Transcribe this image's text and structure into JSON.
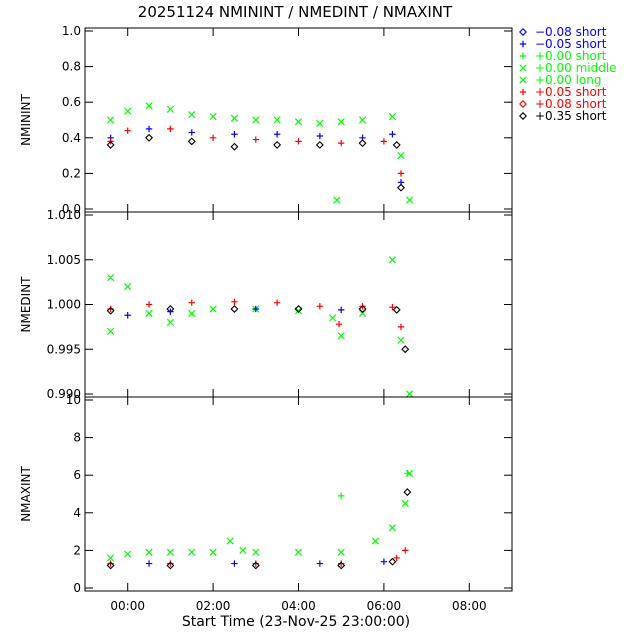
{
  "chart_data": {
    "type": "scatter",
    "title": "20251124 NMININT / NMEDINT / NMAXINT",
    "xlabel": "Start Time (23-Nov-25 23:00:00)",
    "x_unit": "hours since 23-Nov-25 23:00:00",
    "x_range": [
      0,
      10
    ],
    "x_ticks": [
      1,
      3,
      5,
      7,
      9
    ],
    "x_tick_labels": [
      "00:00",
      "02:00",
      "04:00",
      "06:00",
      "08:00"
    ],
    "grid": false,
    "legend_position": "right",
    "legend": [
      {
        "label": "−0.08 short",
        "symbol": "diamond",
        "color": "#0000ff"
      },
      {
        "label": "−0.05 short",
        "symbol": "plus",
        "color": "#0000ff"
      },
      {
        "label": "+0.00 short",
        "symbol": "plus",
        "color": "#00ff00"
      },
      {
        "label": "+0.00 middle",
        "symbol": "cross",
        "color": "#00ff00"
      },
      {
        "label": "+0.00 long",
        "symbol": "cross",
        "color": "#00ff00"
      },
      {
        "label": "+0.05 short",
        "symbol": "plus",
        "color": "#ff0000"
      },
      {
        "label": "+0.08 short",
        "symbol": "diamond",
        "color": "#ff0000"
      },
      {
        "label": "+0.35 short",
        "symbol": "diamond",
        "color": "#000000"
      }
    ],
    "panels": [
      {
        "ylabel": "NMININT",
        "ylim": [
          0,
          1
        ],
        "yticks": [
          0,
          0.2,
          0.4,
          0.6,
          0.8,
          1.0
        ],
        "ytick_labels": [
          "0.0",
          "0.2",
          "0.4",
          "0.6",
          "0.8",
          "1.0"
        ],
        "series": [
          {
            "symbol": "cross",
            "color": "#00ff00",
            "points": [
              [
                0.6,
                0.5
              ],
              [
                1.0,
                0.55
              ],
              [
                1.5,
                0.58
              ],
              [
                2.0,
                0.56
              ],
              [
                2.5,
                0.53
              ],
              [
                3.0,
                0.52
              ],
              [
                3.5,
                0.51
              ],
              [
                4.0,
                0.5
              ],
              [
                4.5,
                0.5
              ],
              [
                5.0,
                0.49
              ],
              [
                5.5,
                0.48
              ],
              [
                6.0,
                0.49
              ],
              [
                6.5,
                0.5
              ],
              [
                7.2,
                0.52
              ],
              [
                7.4,
                0.3
              ],
              [
                7.6,
                0.05
              ],
              [
                5.9,
                0.05
              ]
            ]
          },
          {
            "symbol": "plus",
            "color": "#0000ff",
            "points": [
              [
                0.6,
                0.4
              ],
              [
                1.5,
                0.45
              ],
              [
                2.5,
                0.43
              ],
              [
                3.5,
                0.42
              ],
              [
                4.5,
                0.42
              ],
              [
                5.5,
                0.41
              ],
              [
                6.5,
                0.4
              ],
              [
                7.2,
                0.42
              ],
              [
                7.4,
                0.15
              ]
            ]
          },
          {
            "symbol": "plus",
            "color": "#ff0000",
            "points": [
              [
                0.6,
                0.38
              ],
              [
                1.0,
                0.44
              ],
              [
                2.0,
                0.45
              ],
              [
                3.0,
                0.4
              ],
              [
                4.0,
                0.39
              ],
              [
                5.0,
                0.38
              ],
              [
                6.0,
                0.37
              ],
              [
                7.0,
                0.38
              ],
              [
                7.4,
                0.2
              ]
            ]
          },
          {
            "symbol": "diamond",
            "color": "#000000",
            "points": [
              [
                0.6,
                0.36
              ],
              [
                1.5,
                0.4
              ],
              [
                2.5,
                0.38
              ],
              [
                3.5,
                0.35
              ],
              [
                4.5,
                0.36
              ],
              [
                5.5,
                0.36
              ],
              [
                6.5,
                0.37
              ],
              [
                7.3,
                0.36
              ],
              [
                7.4,
                0.12
              ]
            ]
          }
        ]
      },
      {
        "ylabel": "NMEDINT",
        "ylim": [
          0.99,
          1.01
        ],
        "yticks": [
          0.99,
          0.995,
          1.0,
          1.005,
          1.01
        ],
        "ytick_labels": [
          "0.990",
          "0.995",
          "1.000",
          "1.005",
          "1.010"
        ],
        "series": [
          {
            "symbol": "cross",
            "color": "#00ff00",
            "points": [
              [
                0.6,
                1.003
              ],
              [
                0.6,
                0.997
              ],
              [
                1.0,
                1.002
              ],
              [
                1.5,
                0.999
              ],
              [
                2.0,
                0.998
              ],
              [
                2.5,
                0.999
              ],
              [
                3.0,
                0.9995
              ],
              [
                4.0,
                0.9995
              ],
              [
                5.0,
                0.9993
              ],
              [
                5.8,
                0.9985
              ],
              [
                6.0,
                0.9965
              ],
              [
                6.5,
                0.999
              ],
              [
                7.2,
                1.005
              ],
              [
                7.4,
                0.996
              ],
              [
                7.6,
                0.99
              ]
            ]
          },
          {
            "symbol": "plus",
            "color": "#ff0000",
            "points": [
              [
                0.6,
                0.9995
              ],
              [
                1.5,
                1.0
              ],
              [
                2.5,
                1.0002
              ],
              [
                3.5,
                1.0003
              ],
              [
                4.5,
                1.0002
              ],
              [
                5.5,
                0.9998
              ],
              [
                6.5,
                0.9998
              ],
              [
                7.2,
                0.9997
              ],
              [
                7.4,
                0.9975
              ],
              [
                5.95,
                0.9978
              ]
            ]
          },
          {
            "symbol": "diamond",
            "color": "#000000",
            "points": [
              [
                0.6,
                0.9993
              ],
              [
                2.0,
                0.9995
              ],
              [
                3.5,
                0.9995
              ],
              [
                5.0,
                0.9995
              ],
              [
                6.5,
                0.9995
              ],
              [
                7.3,
                0.9994
              ],
              [
                7.5,
                0.995
              ]
            ]
          },
          {
            "symbol": "plus",
            "color": "#0000ff",
            "points": [
              [
                1.0,
                0.9988
              ],
              [
                2.0,
                0.9992
              ],
              [
                4.0,
                0.9995
              ],
              [
                6.0,
                0.9994
              ]
            ]
          }
        ]
      },
      {
        "ylabel": "NMAXINT",
        "ylim": [
          0,
          10
        ],
        "yticks": [
          0,
          2,
          4,
          6,
          8,
          10
        ],
        "ytick_labels": [
          "0",
          "2",
          "4",
          "6",
          "8",
          "10"
        ],
        "series": [
          {
            "symbol": "cross",
            "color": "#00ff00",
            "points": [
              [
                0.6,
                1.6
              ],
              [
                1.0,
                1.8
              ],
              [
                1.5,
                1.9
              ],
              [
                2.0,
                1.9
              ],
              [
                2.5,
                1.9
              ],
              [
                3.0,
                1.9
              ],
              [
                3.4,
                2.5
              ],
              [
                3.7,
                2.0
              ],
              [
                4.0,
                1.9
              ],
              [
                5.0,
                1.9
              ],
              [
                6.0,
                1.9
              ],
              [
                6.8,
                2.5
              ],
              [
                7.2,
                3.2
              ],
              [
                7.5,
                4.5
              ],
              [
                7.6,
                6.1
              ]
            ]
          },
          {
            "symbol": "plus",
            "color": "#00ff00",
            "points": [
              [
                6.0,
                4.9
              ],
              [
                7.55,
                6.1
              ]
            ]
          },
          {
            "symbol": "plus",
            "color": "#ff0000",
            "points": [
              [
                0.6,
                1.3
              ],
              [
                2.0,
                1.3
              ],
              [
                4.0,
                1.3
              ],
              [
                6.0,
                1.3
              ],
              [
                7.3,
                1.6
              ],
              [
                7.5,
                2.0
              ]
            ]
          },
          {
            "symbol": "diamond",
            "color": "#000000",
            "points": [
              [
                0.6,
                1.2
              ],
              [
                2.0,
                1.2
              ],
              [
                4.0,
                1.2
              ],
              [
                6.0,
                1.2
              ],
              [
                7.2,
                1.4
              ],
              [
                7.55,
                5.1
              ]
            ]
          },
          {
            "symbol": "plus",
            "color": "#0000ff",
            "points": [
              [
                1.5,
                1.3
              ],
              [
                3.5,
                1.3
              ],
              [
                5.5,
                1.3
              ],
              [
                7.0,
                1.4
              ]
            ]
          }
        ]
      }
    ]
  }
}
